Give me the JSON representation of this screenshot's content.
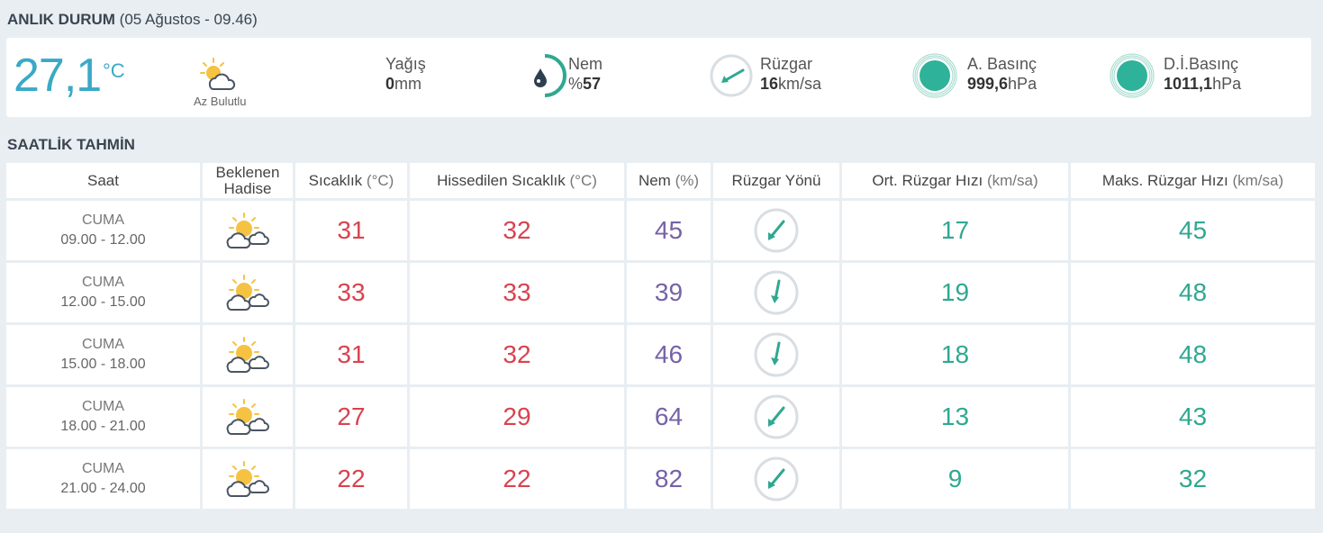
{
  "current": {
    "heading": "ANLIK DURUM",
    "date_paren": "(05 Ağustos - 09.46)",
    "temperature": "27,1",
    "temp_unit": "°C",
    "condition": "Az Bulutlu",
    "condition_icon": "partly-cloudy-icon",
    "rain": {
      "label": "Yağış",
      "value": "0",
      "unit": "mm"
    },
    "humidity": {
      "label": "Nem",
      "prefix": "%",
      "value": "57",
      "icon": "humidity-drop-icon"
    },
    "wind": {
      "label": "Rüzgar",
      "value": "16",
      "unit": "km/sa",
      "icon": "wind-direction-icon"
    },
    "pressure": {
      "label": "A. Basınç",
      "value": "999,6",
      "unit": "hPa",
      "icon": "pressure-icon"
    },
    "sea_pressure": {
      "label": "D.İ.Basınç",
      "value": "1011,1",
      "unit": "hPa",
      "icon": "pressure-icon"
    }
  },
  "forecast": {
    "heading": "SAATLİK TAHMİN",
    "headers": {
      "time": "Saat",
      "event_line1": "Beklenen",
      "event_line2": "Hadise",
      "temp": "Sıcaklık",
      "temp_unit": "(°C)",
      "feels": "Hissedilen Sıcaklık",
      "feels_unit": "(°C)",
      "hum": "Nem",
      "hum_unit": "(%)",
      "wind_dir": "Rüzgar Yönü",
      "avg_wind": "Ort. Rüzgar Hızı",
      "avg_wind_unit": "(km/sa)",
      "max_wind": "Maks. Rüzgar Hızı",
      "max_wind_unit": "(km/sa)"
    },
    "rows": [
      {
        "day": "CUMA",
        "time": "09.00 - 12.00",
        "temp": "31",
        "feels": "32",
        "hum": "45",
        "avg": "17",
        "max": "45"
      },
      {
        "day": "CUMA",
        "time": "12.00 - 15.00",
        "temp": "33",
        "feels": "33",
        "hum": "39",
        "avg": "19",
        "max": "48"
      },
      {
        "day": "CUMA",
        "time": "15.00 - 18.00",
        "temp": "31",
        "feels": "32",
        "hum": "46",
        "avg": "18",
        "max": "48"
      },
      {
        "day": "CUMA",
        "time": "18.00 - 21.00",
        "temp": "27",
        "feels": "29",
        "hum": "64",
        "avg": "13",
        "max": "43"
      },
      {
        "day": "CUMA",
        "time": "21.00 - 24.00",
        "temp": "22",
        "feels": "22",
        "hum": "82",
        "avg": "9",
        "max": "32"
      }
    ]
  },
  "colors": {
    "temp_current": "#3aa9c7",
    "temperature": "#d8434f",
    "humidity": "#7562a8",
    "wind": "#2fa891",
    "sun": "#f5c242",
    "cloud": "#4a5563"
  }
}
